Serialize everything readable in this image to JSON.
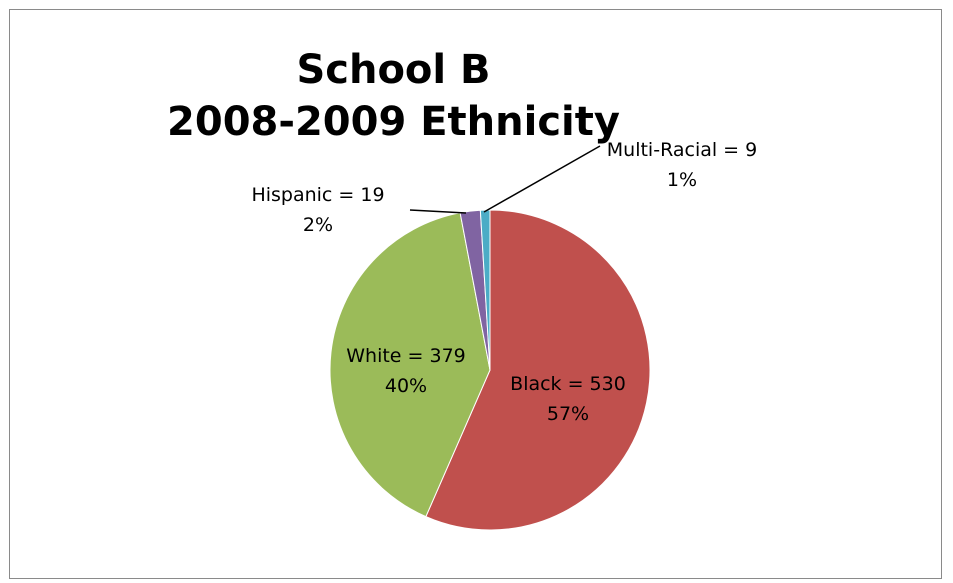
{
  "chart_data": {
    "type": "pie",
    "title": "School B",
    "subtitle": "2008-2009 Ethnicity",
    "start_angle_deg": 0,
    "direction": "clockwise",
    "slices": [
      {
        "name": "Black",
        "value": 530,
        "percent": "57%",
        "color": "#C0504D",
        "label_line1": "Black = 530",
        "label_line2": "57%"
      },
      {
        "name": "White",
        "value": 379,
        "percent": "40%",
        "color": "#9BBB59",
        "label_line1": "White = 379",
        "label_line2": "40%"
      },
      {
        "name": "Hispanic",
        "value": 19,
        "percent": "2%",
        "color": "#8064A2",
        "label_line1": "Hispanic = 19",
        "label_line2": "2%"
      },
      {
        "name": "Multi-Racial",
        "value": 9,
        "percent": "1%",
        "color": "#4BACC6",
        "label_line1": "Multi-Racial = 9",
        "label_line2": "1%"
      }
    ]
  }
}
